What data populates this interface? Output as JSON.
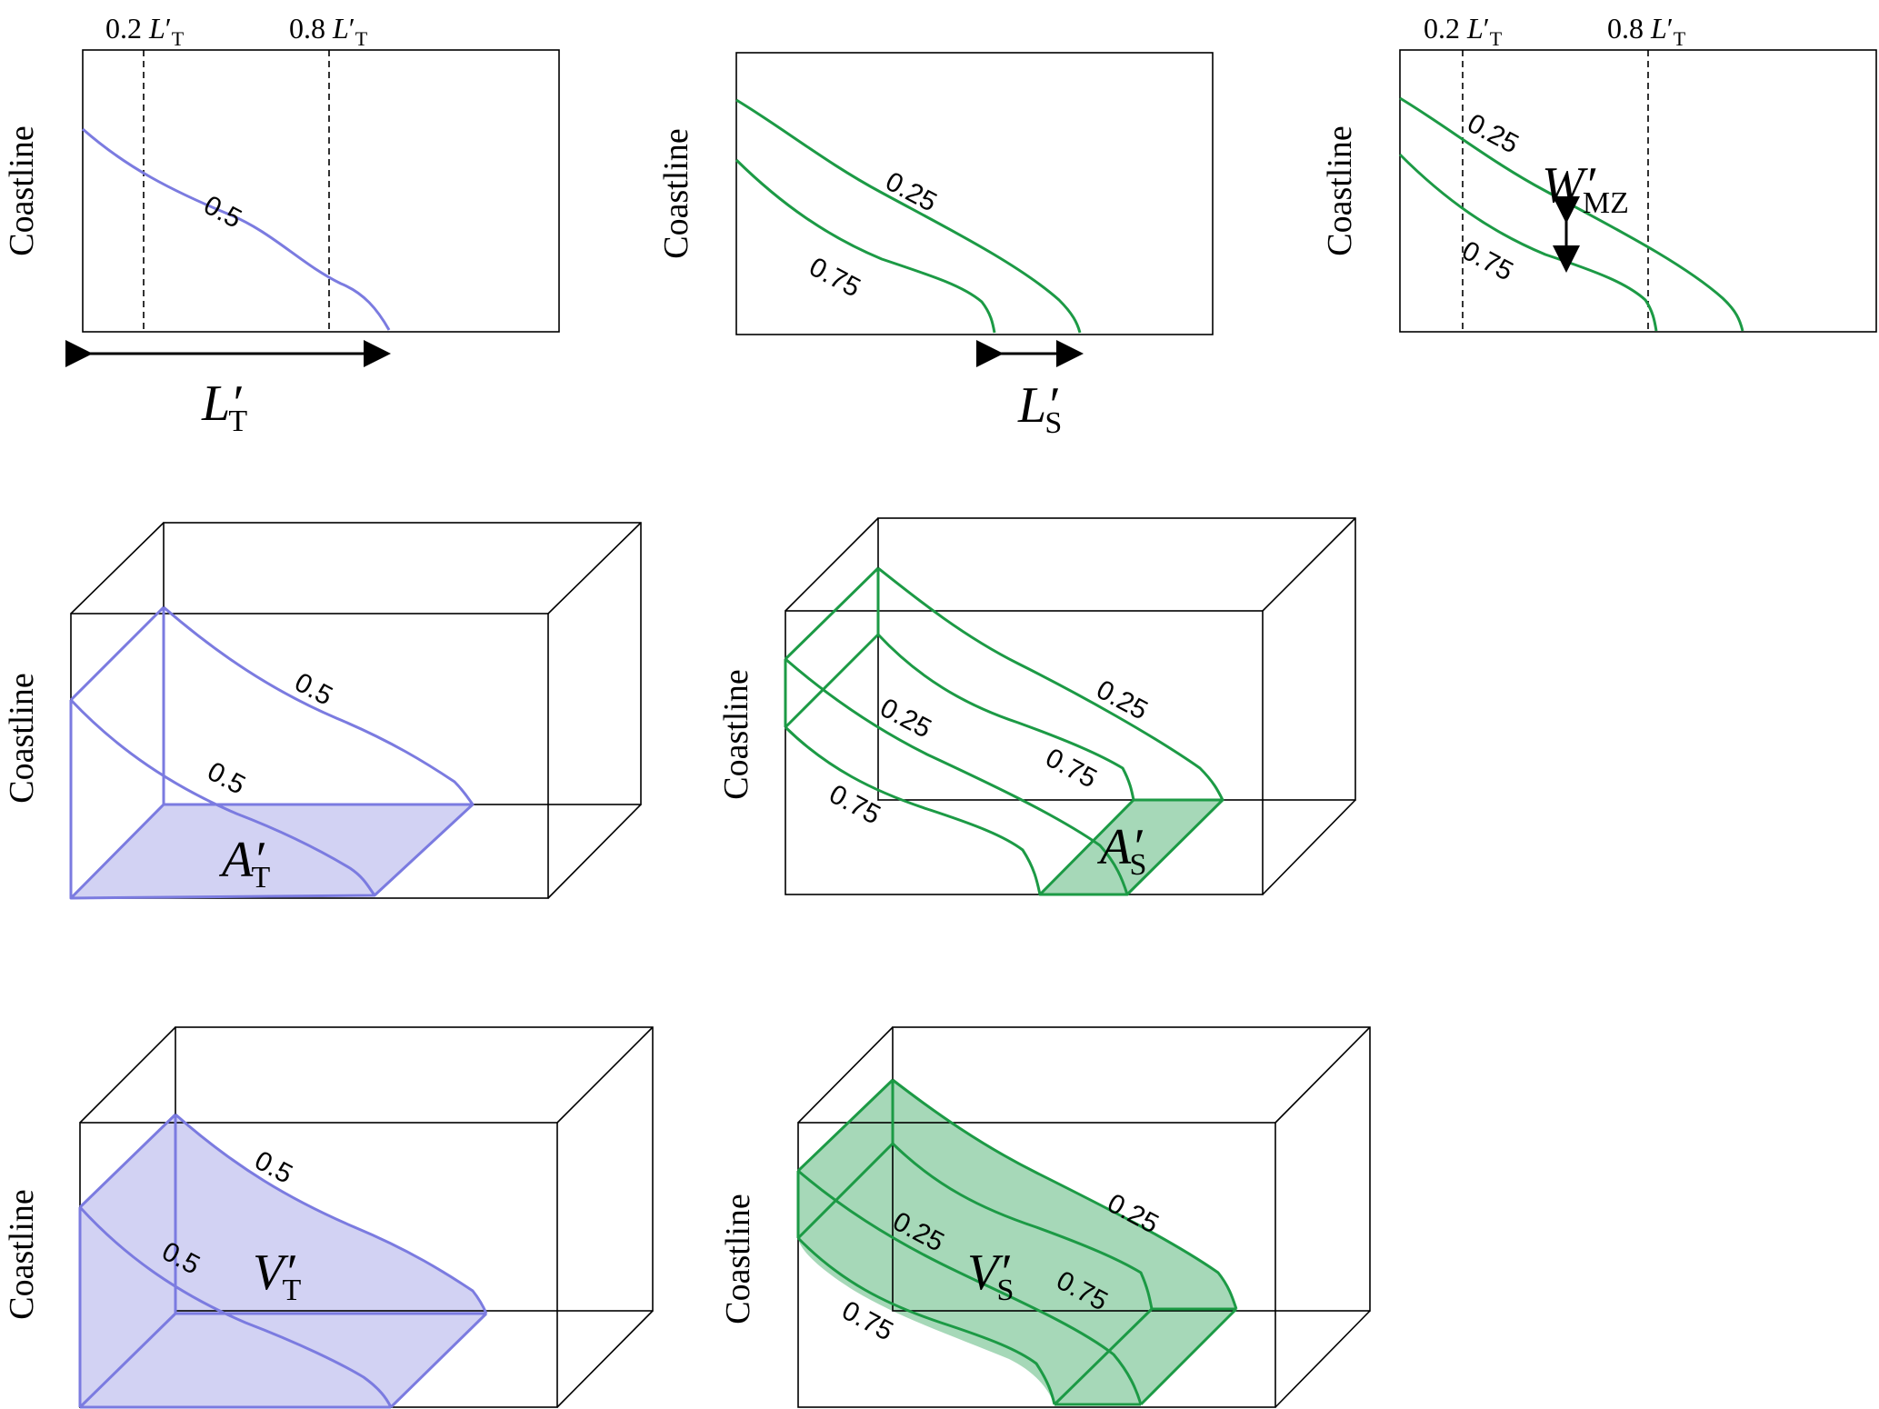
{
  "axis_label": "Coastline",
  "contours": {
    "half": "0.5",
    "quarter": "0.25",
    "three_quarter": "0.75"
  },
  "tick_fractions": {
    "low": "0.2",
    "high": "0.8"
  },
  "symbols": {
    "prime": "′",
    "L": "L",
    "W": "W",
    "A": "A",
    "V": "V",
    "sub_T": "T",
    "sub_S": "S",
    "sub_MZ": "MZ"
  },
  "colors": {
    "blue_line": "#7b7be0",
    "blue_fill": "#d2d2f3",
    "green_line": "#1c9a45",
    "green_fill": "#a6d8b8"
  }
}
